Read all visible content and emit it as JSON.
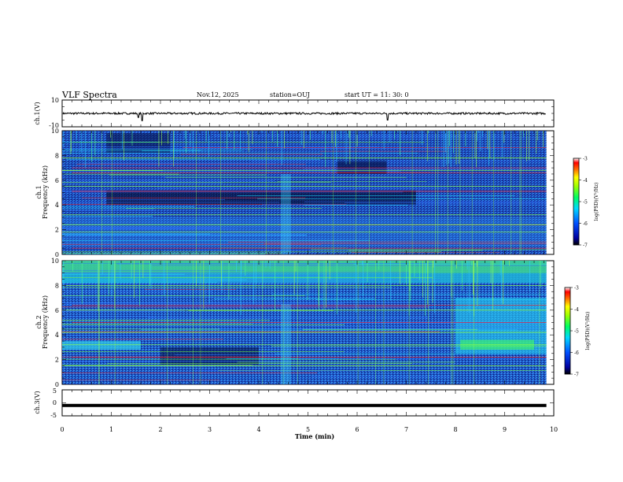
{
  "header": {
    "title": "VLF Spectra",
    "date": "Nov.12, 2025",
    "station": "station=OUJ",
    "start": "start  UT =   11: 30: 0"
  },
  "chart_data": [
    {
      "type": "line",
      "name": "ch1-waveform",
      "ylabel": "ch.1(V)",
      "ylim": [
        -10,
        10
      ],
      "yticks": [
        "10",
        "-10"
      ],
      "xlim": [
        0,
        10
      ],
      "baseline": 0,
      "spikes": [
        {
          "t": 1.55,
          "v": -3.0
        },
        {
          "t": 1.63,
          "v": -5.5
        },
        {
          "t": 6.62,
          "v": -5.0
        }
      ]
    },
    {
      "type": "heatmap",
      "name": "ch1-spectrogram",
      "ylabel": "ch.1\nFrequency (kHz)",
      "ylim": [
        0,
        10
      ],
      "yticks": [
        "0",
        "2",
        "4",
        "6",
        "8",
        "10"
      ],
      "xlim": [
        0,
        10
      ],
      "data_end_min": 9.85,
      "colorbar": {
        "label": "log(PSD)(V²/Hz)",
        "range": [
          -7,
          -3
        ],
        "ticks": [
          "-3",
          "-4",
          "-5",
          "-6",
          "-7"
        ]
      },
      "dark_band_kHz": [
        4.0,
        5.2
      ],
      "red_lines_kHz": [
        0.5,
        5.1,
        6.6,
        7.0
      ],
      "green_lines_kHz": [
        7.8,
        6.8,
        5.5,
        3.2,
        2.4,
        1.8
      ]
    },
    {
      "type": "heatmap",
      "name": "ch2-spectrogram",
      "ylabel": "ch.2\nFrequency (kHz)",
      "ylim": [
        0,
        10
      ],
      "yticks": [
        "0",
        "2",
        "4",
        "6",
        "8",
        "10"
      ],
      "xlim": [
        0,
        10
      ],
      "data_end_min": 9.85,
      "colorbar": {
        "label": "log(PSD)(V²/Hz)",
        "range": [
          -7,
          -3
        ],
        "ticks": [
          "-3",
          "-4",
          "-5",
          "-6",
          "-7"
        ]
      },
      "bright_top_band_kHz": [
        8.2,
        10
      ],
      "bright_patch": {
        "t": [
          8.0,
          9.85
        ],
        "f": [
          2.5,
          7.0
        ]
      },
      "low_patch": {
        "t": [
          0,
          1.6
        ],
        "f": [
          2.8,
          3.5
        ]
      },
      "red_lines_kHz": [
        2.2,
        5.0,
        6.4
      ],
      "green_lines_kHz": [
        8.0,
        6.0,
        4.2,
        3.2,
        1.5
      ]
    },
    {
      "type": "line",
      "name": "ch3-waveform",
      "ylabel": "ch.3(V)",
      "ylim": [
        -5,
        5
      ],
      "yticks": [
        "5",
        "0",
        "-5"
      ],
      "xlim": [
        0,
        10
      ],
      "level": -1.0
    }
  ],
  "xaxis": {
    "label": "Time (min)",
    "ticks": [
      "0",
      "1",
      "2",
      "3",
      "4",
      "5",
      "6",
      "7",
      "8",
      "9",
      "10"
    ]
  }
}
